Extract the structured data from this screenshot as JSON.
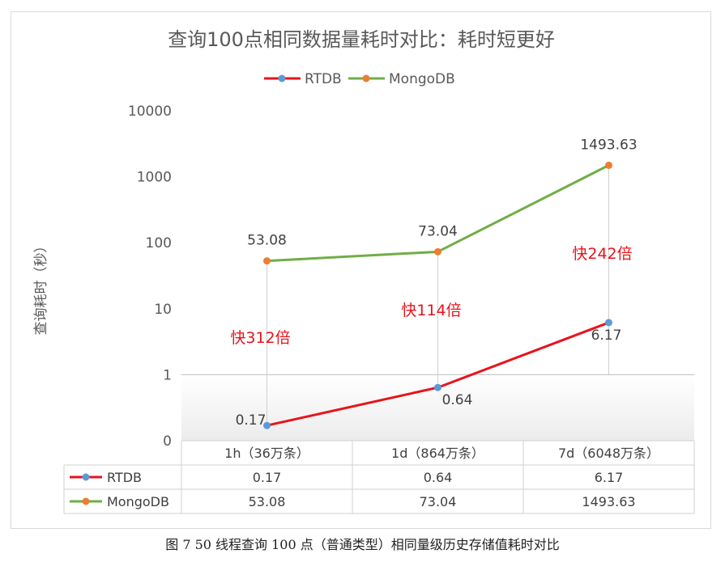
{
  "chart_data": {
    "type": "line",
    "title": "查询100点相同数据量耗时对比：耗时短更好",
    "ylabel": "查询耗时（秒）",
    "xlabel": "",
    "y_scale": "log",
    "y_ticks": [
      {
        "value": 0.1,
        "label": "0"
      },
      {
        "value": 1,
        "label": "1"
      },
      {
        "value": 10,
        "label": "10"
      },
      {
        "value": 100,
        "label": "100"
      },
      {
        "value": 1000,
        "label": "1000"
      },
      {
        "value": 10000,
        "label": "10000"
      }
    ],
    "ylim": [
      0.1,
      10000
    ],
    "grid": true,
    "legend_position": "top",
    "categories": [
      "1h（36万条）",
      "1d（864万条）",
      "7d（6048万条）"
    ],
    "series": [
      {
        "name": "RTDB",
        "values": [
          0.17,
          0.64,
          6.17
        ],
        "labels": [
          "0.17",
          "0.64",
          "6.17"
        ],
        "line_color": "#e8131b",
        "marker_color": "#5b9bd5"
      },
      {
        "name": "MongoDB",
        "values": [
          53.08,
          73.04,
          1493.63
        ],
        "labels": [
          "53.08",
          "73.04",
          "1493.63"
        ],
        "line_color": "#70ad47",
        "marker_color": "#ed7d31"
      }
    ],
    "annotations": [
      "快312倍",
      "快114倍",
      "快242倍"
    ],
    "annotation_color": "#e8131b",
    "table_rows": [
      {
        "name": "RTDB",
        "values": [
          "0.17",
          "0.64",
          "6.17"
        ]
      },
      {
        "name": "MongoDB",
        "values": [
          "53.08",
          "73.04",
          "1493.63"
        ]
      }
    ]
  },
  "caption": "图 7  50 线程查询 100 点（普通类型）相同量级历史存储值耗时对比"
}
